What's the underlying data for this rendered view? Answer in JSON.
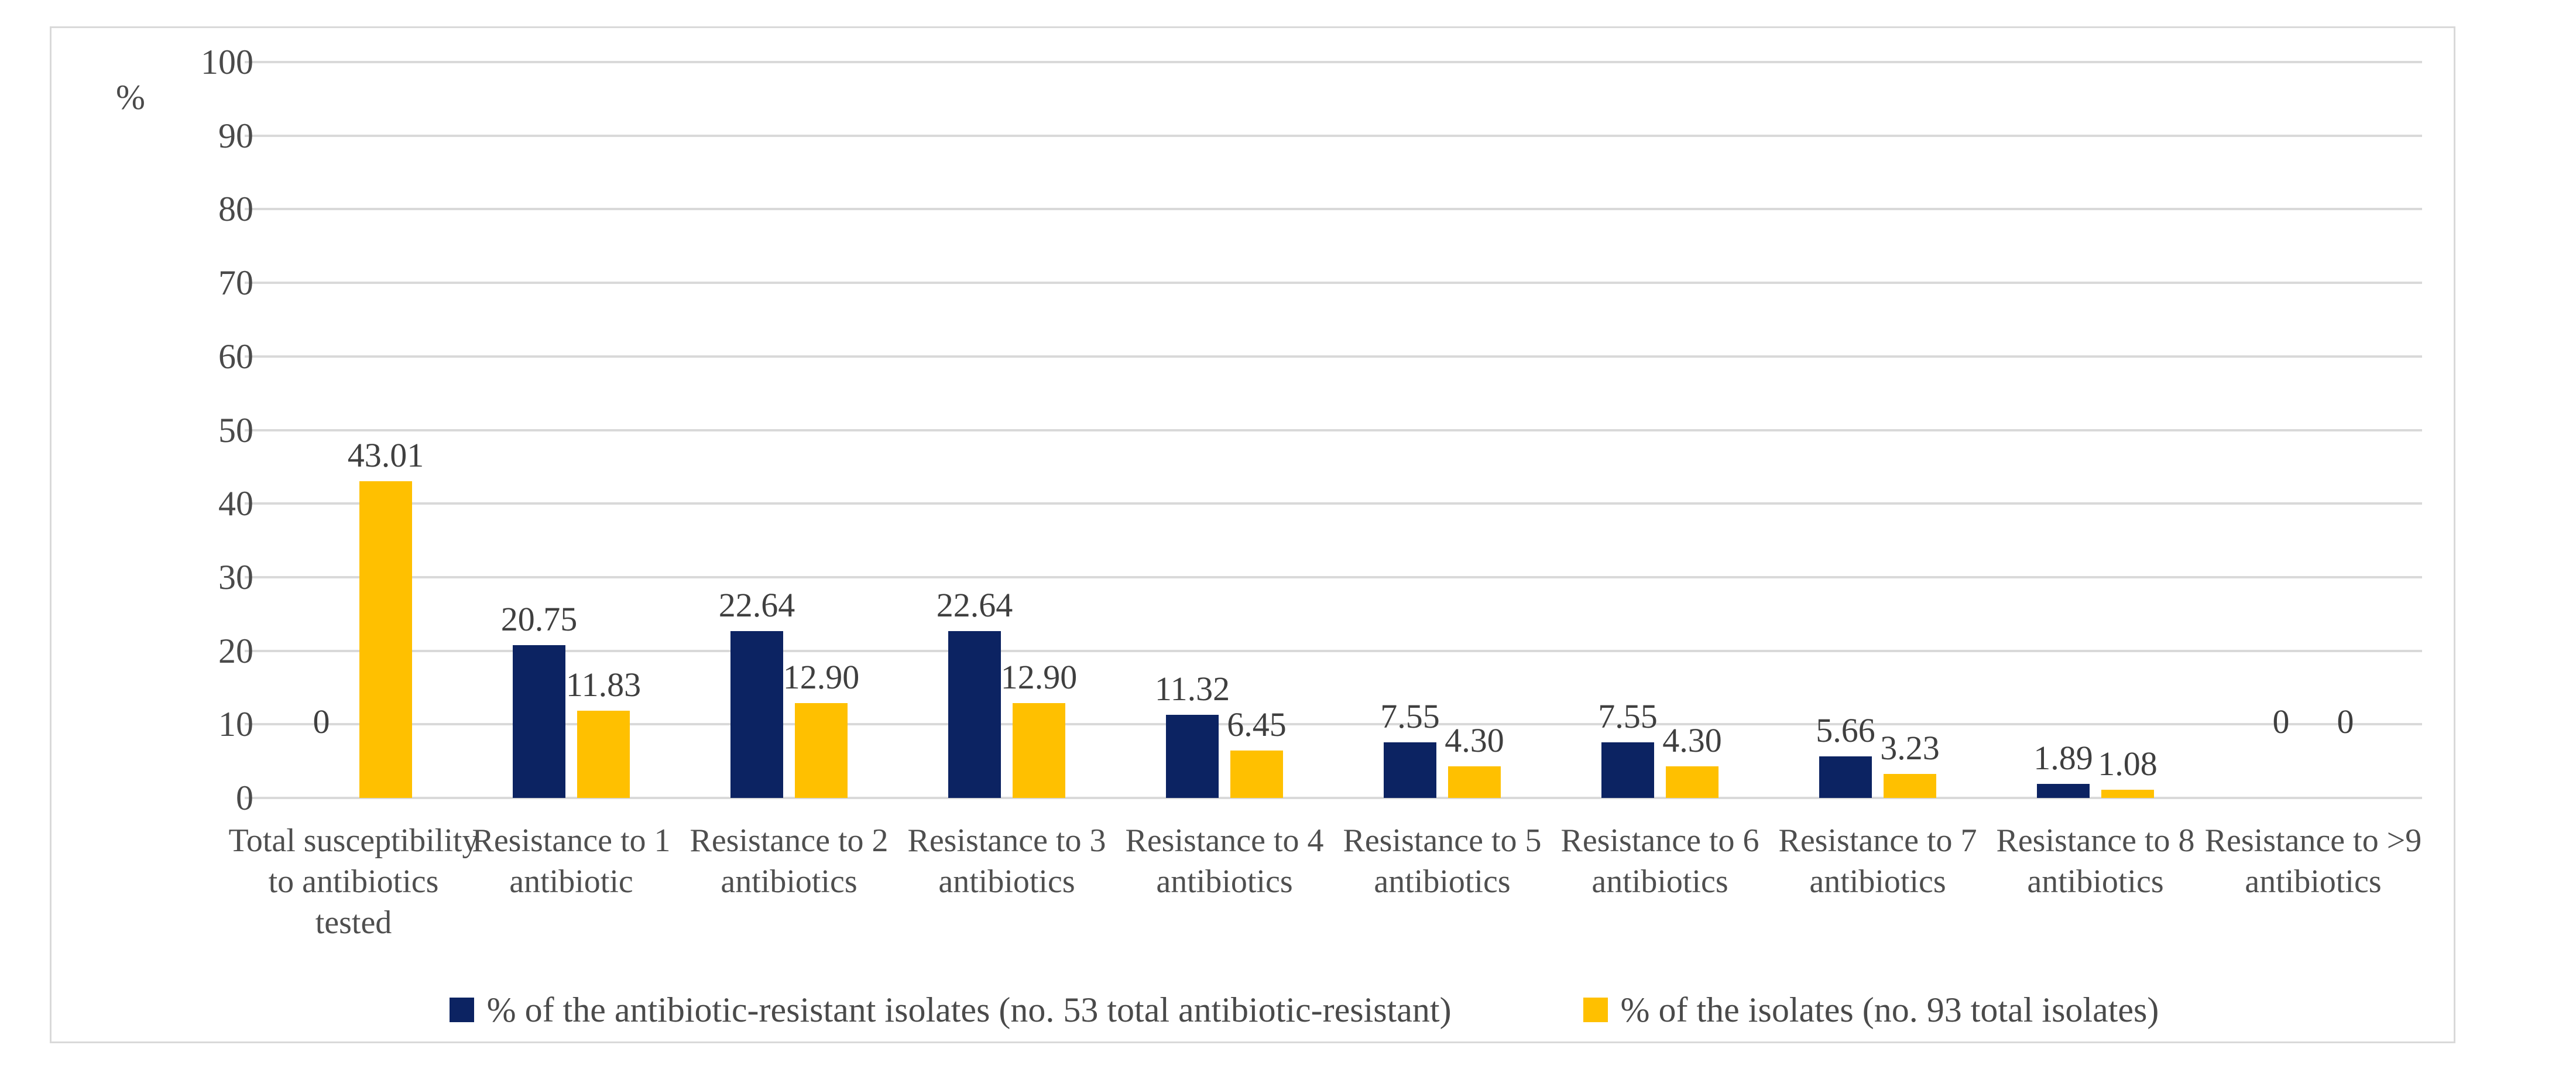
{
  "chart_data": {
    "type": "bar",
    "title": "",
    "xlabel": "",
    "ylabel": "%",
    "ylim": [
      0,
      100
    ],
    "yticks": [
      0,
      10,
      20,
      30,
      40,
      50,
      60,
      70,
      80,
      90,
      100
    ],
    "grid": true,
    "legend_position": "bottom",
    "categories": [
      "Total susceptibility to antibiotics tested",
      "Resistance to 1 antibiotic",
      "Resistance to 2 antibiotics",
      "Resistance to 3 antibiotics",
      "Resistance to 4 antibiotics",
      "Resistance to 5 antibiotics",
      "Resistance to 6 antibiotics",
      "Resistance to 7 antibiotics",
      "Resistance to 8 antibiotics",
      "Resistance to >9 antibiotics"
    ],
    "series": [
      {
        "name": "% of the antibiotic-resistant isolates (no. 53 total antibiotic-resistant)",
        "color": "#0c2362",
        "values": [
          0,
          20.75,
          22.64,
          22.64,
          11.32,
          7.55,
          7.55,
          5.66,
          1.89,
          0
        ],
        "labels": [
          "0",
          "20.75",
          "22.64",
          "22.64",
          "11.32",
          "7.55",
          "7.55",
          "5.66",
          "1.89",
          "0"
        ]
      },
      {
        "name": "% of the isolates (no. 93 total isolates)",
        "color": "#ffc000",
        "values": [
          43.01,
          11.83,
          12.9,
          12.9,
          6.45,
          4.3,
          4.3,
          3.23,
          1.08,
          0
        ],
        "labels": [
          "43.01",
          "11.83",
          "12.90",
          "12.90",
          "6.45",
          "4.30",
          "4.30",
          "3.23",
          "1.08",
          "0"
        ]
      }
    ],
    "colors": {
      "gridline": "#d9d9d9",
      "chart_border": "#d9d9d9",
      "axis_text": "#4a4a4a",
      "data_label_text": "#3f3f3f"
    }
  }
}
